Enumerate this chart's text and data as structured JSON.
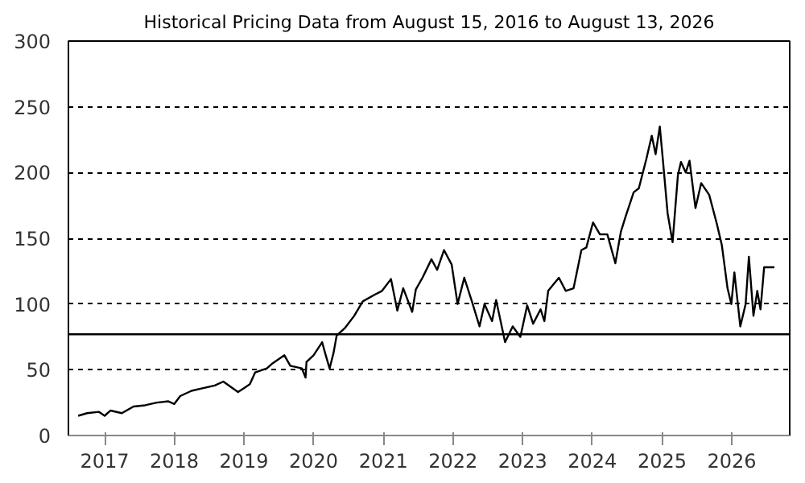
{
  "chart_data": {
    "type": "line",
    "title": "Historical Pricing Data from August 15, 2016 to August 13, 2026",
    "x": [
      "2016-08-15",
      "2016-10-01",
      "2016-12-01",
      "2017-01-01",
      "2017-02-01",
      "2017-04-01",
      "2017-06-01",
      "2017-08-01",
      "2017-10-01",
      "2017-12-01",
      "2018-01-01",
      "2018-02-01",
      "2018-04-01",
      "2018-06-01",
      "2018-08-01",
      "2018-09-15",
      "2018-12-01",
      "2019-01-01",
      "2019-02-01",
      "2019-03-01",
      "2019-05-01",
      "2019-06-01",
      "2019-08-01",
      "2019-09-01",
      "2019-11-01",
      "2019-11-20",
      "2019-11-25",
      "2020-01-01",
      "2020-02-15",
      "2020-03-01",
      "2020-03-25",
      "2020-04-15",
      "2020-05-01",
      "2020-06-15",
      "2020-08-01",
      "2020-09-15",
      "2020-11-15",
      "2020-12-25",
      "2021-02-10",
      "2021-03-15",
      "2021-04-15",
      "2021-06-01",
      "2021-06-20",
      "2021-07-25",
      "2021-09-10",
      "2021-10-10",
      "2021-11-15",
      "2021-12-25",
      "2022-01-25",
      "2022-03-01",
      "2022-04-10",
      "2022-05-20",
      "2022-06-15",
      "2022-07-25",
      "2022-08-15",
      "2022-10-01",
      "2022-11-10",
      "2022-12-20",
      "2023-01-25",
      "2023-02-25",
      "2023-04-05",
      "2023-04-25",
      "2023-05-15",
      "2023-07-10",
      "2023-08-15",
      "2023-09-25",
      "2023-11-05",
      "2023-12-01",
      "2024-01-05",
      "2024-02-10",
      "2024-03-20",
      "2024-05-01",
      "2024-05-30",
      "2024-06-25",
      "2024-08-05",
      "2024-09-01",
      "2024-10-10",
      "2024-11-08",
      "2024-11-28",
      "2024-12-20",
      "2025-01-05",
      "2025-01-30",
      "2025-02-25",
      "2025-03-25",
      "2025-04-10",
      "2025-05-05",
      "2025-05-25",
      "2025-06-25",
      "2025-07-25",
      "2025-09-05",
      "2025-10-15",
      "2025-11-10",
      "2025-12-10",
      "2025-12-30",
      "2026-01-15",
      "2026-02-15",
      "2026-03-15",
      "2026-04-01",
      "2026-04-25",
      "2026-05-15",
      "2026-06-01",
      "2026-06-20",
      "2026-08-13"
    ],
    "series": [
      {
        "color": "#000000",
        "values": [
          15,
          17,
          18,
          15,
          19,
          17,
          22,
          23,
          25,
          26,
          24,
          30,
          34,
          36,
          38,
          41,
          33,
          36,
          39,
          48,
          51,
          55,
          61,
          53,
          51,
          44,
          56,
          61,
          71,
          63,
          51,
          63,
          76,
          82,
          91,
          102,
          107,
          110,
          119,
          95,
          112,
          94,
          111,
          120,
          134,
          126,
          141,
          130,
          100,
          120,
          102,
          83,
          100,
          87,
          103,
          71,
          83,
          75,
          99,
          85,
          96,
          87,
          110,
          120,
          110,
          112,
          141,
          143,
          162,
          153,
          153,
          131,
          155,
          167,
          185,
          188,
          210,
          228,
          214,
          235,
          210,
          169,
          147,
          198,
          208,
          200,
          209,
          173,
          192,
          183,
          161,
          145,
          112,
          100,
          124,
          83,
          100,
          136,
          91,
          110,
          96,
          128,
          128
        ]
      }
    ],
    "xlim": [
      "2016-06-25",
      "2026-11-01"
    ],
    "xticks": [
      "2017",
      "2018",
      "2019",
      "2020",
      "2021",
      "2022",
      "2023",
      "2024",
      "2025",
      "2026"
    ],
    "ylim": [
      0,
      300
    ],
    "yticks": [
      0,
      50,
      100,
      150,
      200,
      250,
      300
    ],
    "ref_lines": [
      {
        "axis": "y",
        "value": 77,
        "color": "#000000",
        "line_style": "solid"
      }
    ],
    "grid": "y",
    "marker": "none",
    "line_style": "solid"
  }
}
